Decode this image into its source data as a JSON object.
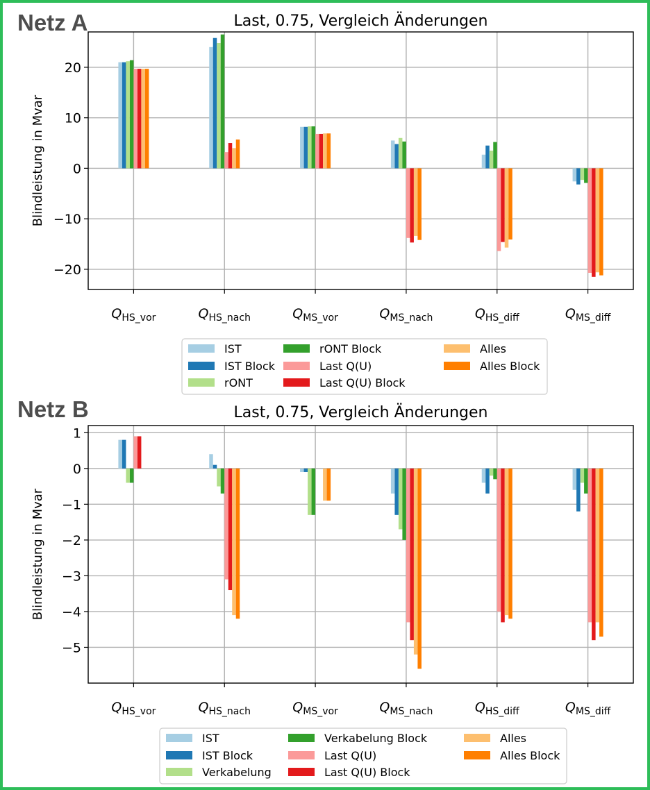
{
  "panels": [
    {
      "label": "Netz A"
    },
    {
      "label": "Netz B"
    }
  ],
  "colors": {
    "border": "#2ebd59",
    "series": [
      "#a6cee3",
      "#1f78b4",
      "#b2df8a",
      "#33a02c",
      "#fb9a99",
      "#e31a1c",
      "#fdbf6f",
      "#ff7f00"
    ]
  },
  "chart_data": [
    {
      "type": "bar",
      "title": "Last, 0.75, Vergleich Änderungen",
      "xlabel": "",
      "ylabel": "Blindleistung in Mvar",
      "ylim": [
        -24,
        27
      ],
      "yticks": [
        20,
        10,
        0,
        -10,
        -20
      ],
      "ytick_labels": [
        "20",
        "10",
        "0",
        "−10",
        "−20"
      ],
      "grid": true,
      "legend_position": "below",
      "categories": [
        {
          "main": "Q",
          "sub": "HS_vor"
        },
        {
          "main": "Q",
          "sub": "HS_nach"
        },
        {
          "main": "Q",
          "sub": "MS_vor"
        },
        {
          "main": "Q",
          "sub": "MS_nach"
        },
        {
          "main": "Q",
          "sub": "HS_diff"
        },
        {
          "main": "Q",
          "sub": "MS_diff"
        }
      ],
      "series": [
        {
          "name": "IST",
          "values": [
            21.0,
            24.0,
            8.2,
            5.5,
            2.7,
            -2.6
          ]
        },
        {
          "name": "IST Block",
          "values": [
            21.0,
            25.8,
            8.2,
            4.8,
            4.5,
            -3.2
          ]
        },
        {
          "name": "rONT",
          "values": [
            21.2,
            24.8,
            8.3,
            6.0,
            3.5,
            -2.3
          ]
        },
        {
          "name": "rONT Block",
          "values": [
            21.4,
            26.5,
            8.3,
            5.3,
            5.2,
            -2.9
          ]
        },
        {
          "name": "Last Q(U)",
          "values": [
            19.7,
            3.2,
            6.8,
            -13.8,
            -16.4,
            -20.7
          ]
        },
        {
          "name": "Last Q(U) Block",
          "values": [
            19.7,
            5.0,
            6.8,
            -14.7,
            -14.6,
            -21.5
          ]
        },
        {
          "name": "Alles",
          "values": [
            19.7,
            4.0,
            6.9,
            -13.4,
            -15.7,
            -20.6
          ]
        },
        {
          "name": "Alles Block",
          "values": [
            19.7,
            5.7,
            6.9,
            -14.2,
            -14.1,
            -21.2
          ]
        }
      ]
    },
    {
      "type": "bar",
      "title": "Last, 0.75, Vergleich Änderungen",
      "xlabel": "",
      "ylabel": "Blindleistung in Mvar",
      "ylim": [
        -6,
        1.2
      ],
      "yticks": [
        1,
        0,
        -1,
        -2,
        -3,
        -4,
        -5
      ],
      "ytick_labels": [
        "1",
        "0",
        "−1",
        "−2",
        "−3",
        "−4",
        "−5"
      ],
      "grid": true,
      "legend_position": "below",
      "categories": [
        {
          "main": "Q",
          "sub": "HS_vor"
        },
        {
          "main": "Q",
          "sub": "HS_nach"
        },
        {
          "main": "Q",
          "sub": "MS_vor"
        },
        {
          "main": "Q",
          "sub": "MS_nach"
        },
        {
          "main": "Q",
          "sub": "HS_diff"
        },
        {
          "main": "Q",
          "sub": "MS_diff"
        }
      ],
      "series": [
        {
          "name": "IST",
          "values": [
            0.8,
            0.4,
            -0.1,
            -0.7,
            -0.4,
            -0.6
          ]
        },
        {
          "name": "IST Block",
          "values": [
            0.8,
            0.1,
            -0.1,
            -1.3,
            -0.7,
            -1.2
          ]
        },
        {
          "name": "Verkabelung",
          "values": [
            -0.4,
            -0.5,
            -1.3,
            -1.7,
            -0.2,
            -0.4
          ]
        },
        {
          "name": "Verkabelung Block",
          "values": [
            -0.4,
            -0.7,
            -1.3,
            -2.0,
            -0.3,
            -0.7
          ]
        },
        {
          "name": "Last Q(U)",
          "values": [
            0.9,
            -3.1,
            0.0,
            -4.3,
            -4.0,
            -4.3
          ]
        },
        {
          "name": "Last Q(U) Block",
          "values": [
            0.9,
            -3.4,
            0.0,
            -4.8,
            -4.3,
            -4.8
          ]
        },
        {
          "name": "Alles",
          "values": [
            0.0,
            -4.1,
            -0.9,
            -5.2,
            -4.1,
            -4.3
          ]
        },
        {
          "name": "Alles Block",
          "values": [
            0.0,
            -4.2,
            -0.9,
            -5.6,
            -4.2,
            -4.7
          ]
        }
      ]
    }
  ]
}
